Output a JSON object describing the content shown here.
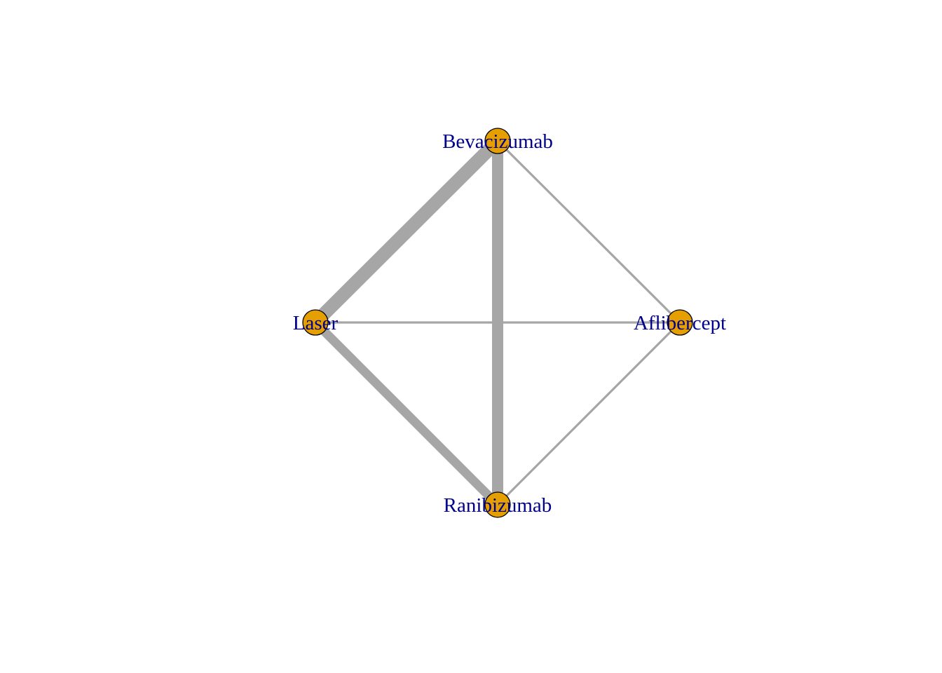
{
  "network": {
    "colors": {
      "edge": "#a6a6a6",
      "node_fill": "#e69f00",
      "node_stroke": "#000000",
      "label": "#00008b",
      "background": "#ffffff"
    },
    "nodes": [
      {
        "id": "bevacizumab",
        "label": "Bevacizumab"
      },
      {
        "id": "laser",
        "label": "Laser"
      },
      {
        "id": "aflibercept",
        "label": "Aflibercept"
      },
      {
        "id": "ranibizumab",
        "label": "Ranibizumab"
      }
    ],
    "edges": [
      {
        "id": "laser-bevacizumab",
        "from": "laser",
        "to": "bevacizumab",
        "weight": 6
      },
      {
        "id": "laser-ranibizumab",
        "from": "laser",
        "to": "ranibizumab",
        "weight": 4
      },
      {
        "id": "bevacizumab-ranibizumab",
        "from": "bevacizumab",
        "to": "ranibizumab",
        "weight": 5
      },
      {
        "id": "bevacizumab-aflibercept",
        "from": "bevacizumab",
        "to": "aflibercept",
        "weight": 1
      },
      {
        "id": "laser-aflibercept",
        "from": "laser",
        "to": "aflibercept",
        "weight": 1
      },
      {
        "id": "ranibizumab-aflibercept",
        "from": "ranibizumab",
        "to": "aflibercept",
        "weight": 1
      }
    ]
  }
}
